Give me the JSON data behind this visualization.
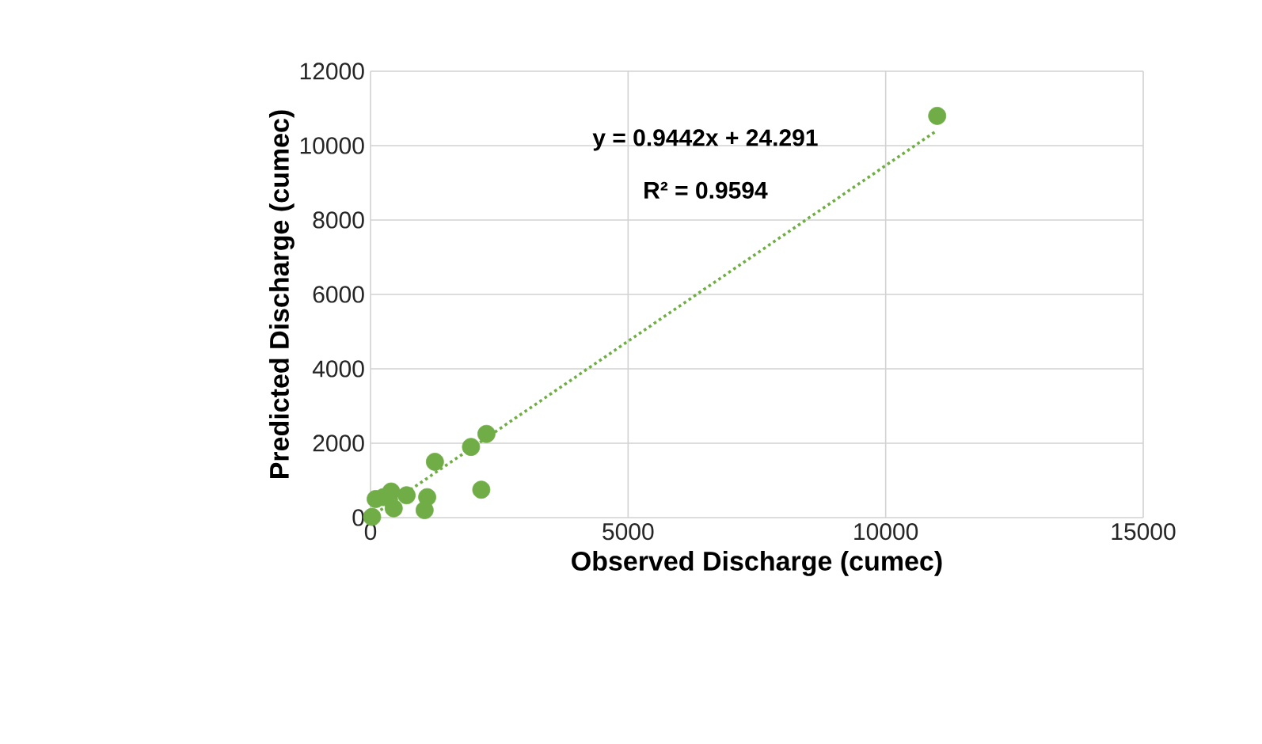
{
  "chart_data": {
    "type": "scatter",
    "xlabel": "Observed Discharge (cumec)",
    "ylabel": "Predicted Discharge (cumec)",
    "xlim": [
      0,
      15000
    ],
    "xticks": [
      0,
      5000,
      10000,
      15000
    ],
    "ylim": [
      0,
      12000
    ],
    "yticks": [
      0,
      2000,
      4000,
      6000,
      8000,
      10000,
      12000
    ],
    "grid": true,
    "marker": "circle",
    "annotations": [
      "y = 0.9442x + 24.291",
      "R² = 0.9594"
    ],
    "series": [
      {
        "color": "#70ad47",
        "x": [
          11000,
          2250,
          1950,
          1250,
          2150,
          1100,
          1050,
          100,
          400,
          450,
          700,
          30,
          250
        ],
        "values": [
          10800,
          2250,
          1900,
          1500,
          750,
          550,
          200,
          500,
          700,
          250,
          600,
          20,
          550
        ]
      },
      {
        "type": "line",
        "color": "#70ad47",
        "marker": "none",
        "line_style": "dotted",
        "x": [
          0,
          11000
        ],
        "values": [
          20,
          10410
        ]
      }
    ]
  }
}
